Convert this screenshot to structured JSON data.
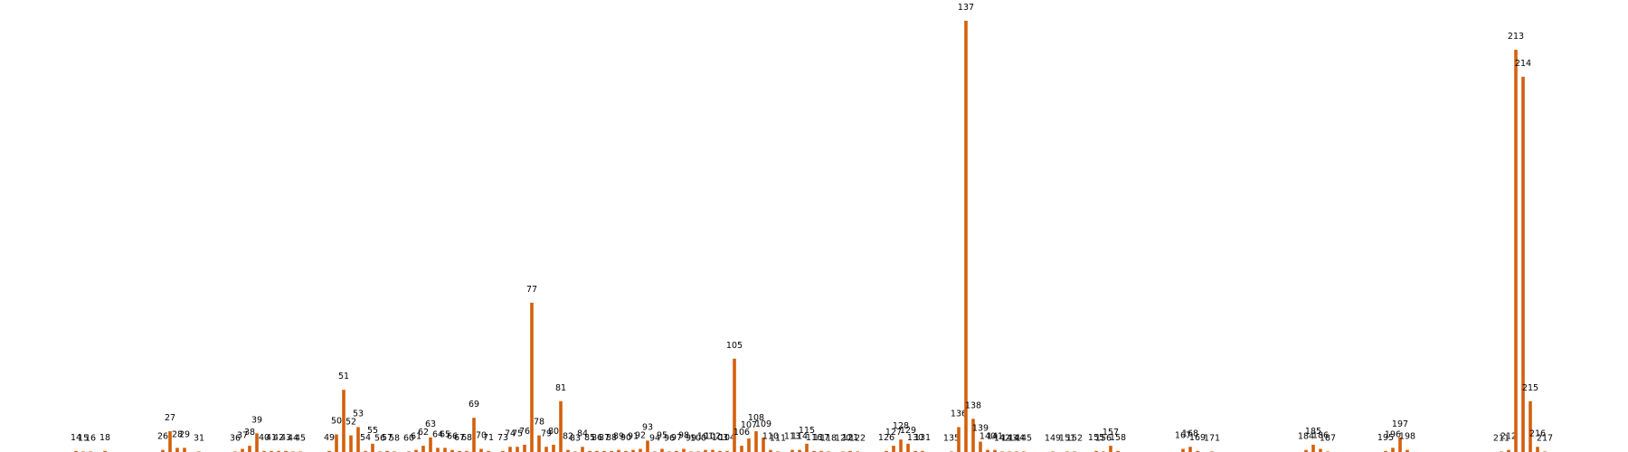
{
  "chart_data": {
    "type": "bar",
    "color": "#d4600c",
    "xlim": [
      3.5,
      228.5
    ],
    "ylim": [
      0,
      436
    ],
    "x": [
      14,
      15,
      16,
      18,
      26,
      27,
      28,
      29,
      31,
      36,
      37,
      38,
      39,
      40,
      41,
      42,
      43,
      44,
      45,
      49,
      50,
      51,
      52,
      53,
      54,
      55,
      56,
      57,
      58,
      60,
      61,
      62,
      63,
      64,
      65,
      66,
      67,
      68,
      69,
      70,
      71,
      73,
      74,
      75,
      76,
      77,
      78,
      79,
      80,
      81,
      82,
      83,
      84,
      85,
      86,
      87,
      88,
      89,
      90,
      91,
      92,
      93,
      94,
      95,
      96,
      97,
      98,
      99,
      100,
      101,
      102,
      103,
      104,
      105,
      106,
      107,
      108,
      109,
      110,
      111,
      113,
      114,
      115,
      116,
      117,
      118,
      120,
      121,
      122,
      126,
      127,
      128,
      129,
      130,
      131,
      135,
      136,
      137,
      138,
      139,
      140,
      141,
      142,
      143,
      144,
      145,
      149,
      151,
      152,
      155,
      156,
      157,
      158,
      167,
      168,
      169,
      171,
      184,
      185,
      186,
      187,
      195,
      196,
      197,
      198,
      211,
      212,
      213,
      214,
      215,
      216,
      217
    ],
    "values": [
      1,
      0.5,
      0.5,
      1,
      2,
      20,
      4,
      4,
      0.5,
      0.5,
      3,
      6,
      18,
      1,
      1,
      1,
      1,
      0.5,
      0.5,
      1,
      17,
      60,
      16,
      24,
      1,
      8,
      0.5,
      1,
      0.5,
      0.5,
      2,
      6,
      14,
      4,
      4,
      2,
      1,
      1,
      33,
      3,
      1,
      1,
      5,
      5,
      7,
      144,
      16,
      5,
      7,
      49,
      2,
      0.5,
      5,
      1,
      1,
      1,
      1,
      2,
      1,
      2,
      3,
      11,
      0.5,
      3,
      0.5,
      1,
      3,
      0.5,
      0.5,
      2,
      2,
      1,
      1,
      90,
      6,
      13,
      20,
      14,
      2,
      0.5,
      2,
      2,
      8,
      1,
      1,
      0.5,
      0.5,
      1,
      0.5,
      1,
      6,
      12,
      8,
      1,
      1,
      0.5,
      24,
      416,
      32,
      10,
      2,
      2,
      0.5,
      0.5,
      0.5,
      0.5,
      0.5,
      0.5,
      0.5,
      1,
      0.5,
      6,
      1,
      3,
      5,
      1,
      0.5,
      2,
      7,
      3,
      0.5,
      1,
      4,
      14,
      2,
      0.5,
      2,
      388,
      362,
      49,
      5,
      0.5
    ]
  }
}
